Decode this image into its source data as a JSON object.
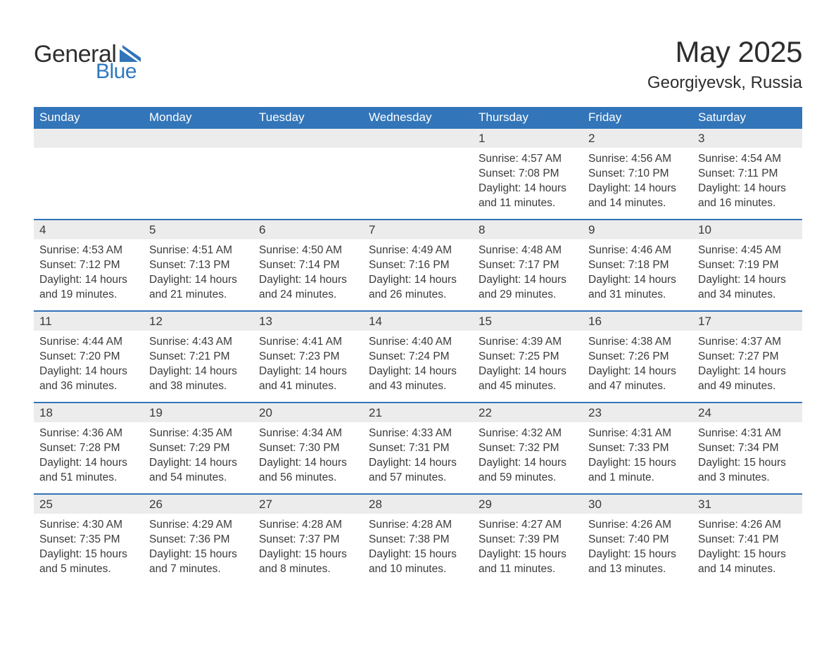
{
  "brand": {
    "word1": "General",
    "word2": "Blue",
    "flag_color": "#3275b9"
  },
  "title": {
    "month": "May 2025",
    "location": "Georgiyevsk, Russia"
  },
  "colors": {
    "header_bg": "#3275b9",
    "header_text": "#ffffff",
    "daynum_bg": "#ececed",
    "text": "#3a3a3a",
    "rule": "#3275b9"
  },
  "weekdays": [
    "Sunday",
    "Monday",
    "Tuesday",
    "Wednesday",
    "Thursday",
    "Friday",
    "Saturday"
  ],
  "weeks": [
    [
      {
        "num": "",
        "sunrise": "",
        "sunset": "",
        "daylight": ""
      },
      {
        "num": "",
        "sunrise": "",
        "sunset": "",
        "daylight": ""
      },
      {
        "num": "",
        "sunrise": "",
        "sunset": "",
        "daylight": ""
      },
      {
        "num": "",
        "sunrise": "",
        "sunset": "",
        "daylight": ""
      },
      {
        "num": "1",
        "sunrise": "Sunrise: 4:57 AM",
        "sunset": "Sunset: 7:08 PM",
        "daylight": "Daylight: 14 hours and 11 minutes."
      },
      {
        "num": "2",
        "sunrise": "Sunrise: 4:56 AM",
        "sunset": "Sunset: 7:10 PM",
        "daylight": "Daylight: 14 hours and 14 minutes."
      },
      {
        "num": "3",
        "sunrise": "Sunrise: 4:54 AM",
        "sunset": "Sunset: 7:11 PM",
        "daylight": "Daylight: 14 hours and 16 minutes."
      }
    ],
    [
      {
        "num": "4",
        "sunrise": "Sunrise: 4:53 AM",
        "sunset": "Sunset: 7:12 PM",
        "daylight": "Daylight: 14 hours and 19 minutes."
      },
      {
        "num": "5",
        "sunrise": "Sunrise: 4:51 AM",
        "sunset": "Sunset: 7:13 PM",
        "daylight": "Daylight: 14 hours and 21 minutes."
      },
      {
        "num": "6",
        "sunrise": "Sunrise: 4:50 AM",
        "sunset": "Sunset: 7:14 PM",
        "daylight": "Daylight: 14 hours and 24 minutes."
      },
      {
        "num": "7",
        "sunrise": "Sunrise: 4:49 AM",
        "sunset": "Sunset: 7:16 PM",
        "daylight": "Daylight: 14 hours and 26 minutes."
      },
      {
        "num": "8",
        "sunrise": "Sunrise: 4:48 AM",
        "sunset": "Sunset: 7:17 PM",
        "daylight": "Daylight: 14 hours and 29 minutes."
      },
      {
        "num": "9",
        "sunrise": "Sunrise: 4:46 AM",
        "sunset": "Sunset: 7:18 PM",
        "daylight": "Daylight: 14 hours and 31 minutes."
      },
      {
        "num": "10",
        "sunrise": "Sunrise: 4:45 AM",
        "sunset": "Sunset: 7:19 PM",
        "daylight": "Daylight: 14 hours and 34 minutes."
      }
    ],
    [
      {
        "num": "11",
        "sunrise": "Sunrise: 4:44 AM",
        "sunset": "Sunset: 7:20 PM",
        "daylight": "Daylight: 14 hours and 36 minutes."
      },
      {
        "num": "12",
        "sunrise": "Sunrise: 4:43 AM",
        "sunset": "Sunset: 7:21 PM",
        "daylight": "Daylight: 14 hours and 38 minutes."
      },
      {
        "num": "13",
        "sunrise": "Sunrise: 4:41 AM",
        "sunset": "Sunset: 7:23 PM",
        "daylight": "Daylight: 14 hours and 41 minutes."
      },
      {
        "num": "14",
        "sunrise": "Sunrise: 4:40 AM",
        "sunset": "Sunset: 7:24 PM",
        "daylight": "Daylight: 14 hours and 43 minutes."
      },
      {
        "num": "15",
        "sunrise": "Sunrise: 4:39 AM",
        "sunset": "Sunset: 7:25 PM",
        "daylight": "Daylight: 14 hours and 45 minutes."
      },
      {
        "num": "16",
        "sunrise": "Sunrise: 4:38 AM",
        "sunset": "Sunset: 7:26 PM",
        "daylight": "Daylight: 14 hours and 47 minutes."
      },
      {
        "num": "17",
        "sunrise": "Sunrise: 4:37 AM",
        "sunset": "Sunset: 7:27 PM",
        "daylight": "Daylight: 14 hours and 49 minutes."
      }
    ],
    [
      {
        "num": "18",
        "sunrise": "Sunrise: 4:36 AM",
        "sunset": "Sunset: 7:28 PM",
        "daylight": "Daylight: 14 hours and 51 minutes."
      },
      {
        "num": "19",
        "sunrise": "Sunrise: 4:35 AM",
        "sunset": "Sunset: 7:29 PM",
        "daylight": "Daylight: 14 hours and 54 minutes."
      },
      {
        "num": "20",
        "sunrise": "Sunrise: 4:34 AM",
        "sunset": "Sunset: 7:30 PM",
        "daylight": "Daylight: 14 hours and 56 minutes."
      },
      {
        "num": "21",
        "sunrise": "Sunrise: 4:33 AM",
        "sunset": "Sunset: 7:31 PM",
        "daylight": "Daylight: 14 hours and 57 minutes."
      },
      {
        "num": "22",
        "sunrise": "Sunrise: 4:32 AM",
        "sunset": "Sunset: 7:32 PM",
        "daylight": "Daylight: 14 hours and 59 minutes."
      },
      {
        "num": "23",
        "sunrise": "Sunrise: 4:31 AM",
        "sunset": "Sunset: 7:33 PM",
        "daylight": "Daylight: 15 hours and 1 minute."
      },
      {
        "num": "24",
        "sunrise": "Sunrise: 4:31 AM",
        "sunset": "Sunset: 7:34 PM",
        "daylight": "Daylight: 15 hours and 3 minutes."
      }
    ],
    [
      {
        "num": "25",
        "sunrise": "Sunrise: 4:30 AM",
        "sunset": "Sunset: 7:35 PM",
        "daylight": "Daylight: 15 hours and 5 minutes."
      },
      {
        "num": "26",
        "sunrise": "Sunrise: 4:29 AM",
        "sunset": "Sunset: 7:36 PM",
        "daylight": "Daylight: 15 hours and 7 minutes."
      },
      {
        "num": "27",
        "sunrise": "Sunrise: 4:28 AM",
        "sunset": "Sunset: 7:37 PM",
        "daylight": "Daylight: 15 hours and 8 minutes."
      },
      {
        "num": "28",
        "sunrise": "Sunrise: 4:28 AM",
        "sunset": "Sunset: 7:38 PM",
        "daylight": "Daylight: 15 hours and 10 minutes."
      },
      {
        "num": "29",
        "sunrise": "Sunrise: 4:27 AM",
        "sunset": "Sunset: 7:39 PM",
        "daylight": "Daylight: 15 hours and 11 minutes."
      },
      {
        "num": "30",
        "sunrise": "Sunrise: 4:26 AM",
        "sunset": "Sunset: 7:40 PM",
        "daylight": "Daylight: 15 hours and 13 minutes."
      },
      {
        "num": "31",
        "sunrise": "Sunrise: 4:26 AM",
        "sunset": "Sunset: 7:41 PM",
        "daylight": "Daylight: 15 hours and 14 minutes."
      }
    ]
  ]
}
